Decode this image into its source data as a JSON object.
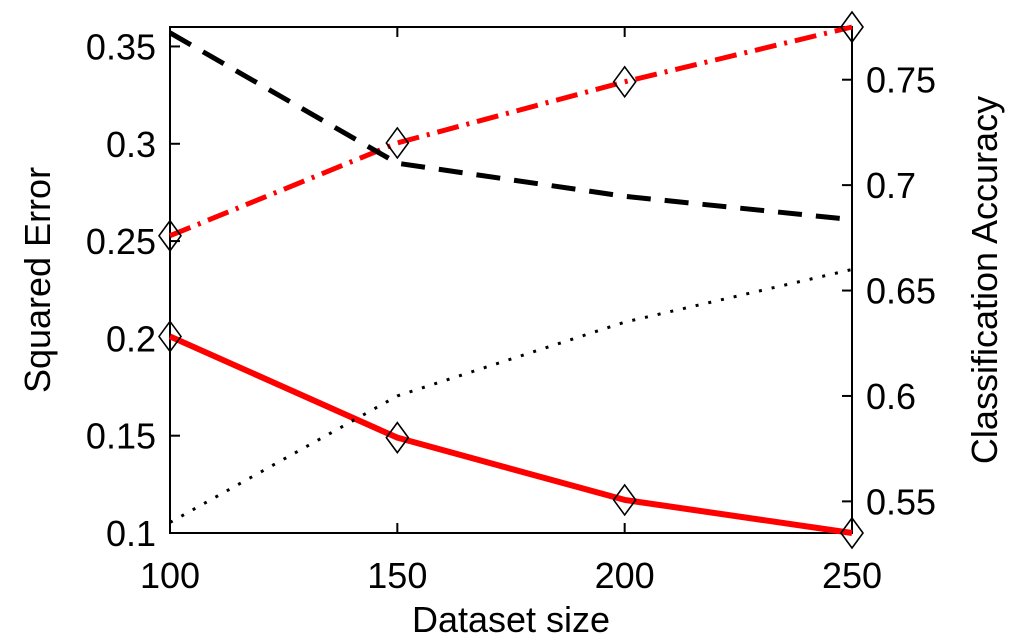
{
  "chart_data": {
    "type": "line",
    "xlabel": "Dataset size",
    "ylabel_left": "Squared Error",
    "ylabel_right": "Classification Accuracy",
    "x": [
      100,
      150,
      200,
      250
    ],
    "xlim": [
      100,
      250
    ],
    "ylim_left": [
      0.1,
      0.36
    ],
    "ylim_right": [
      0.535,
      0.775
    ],
    "xticks": [
      "100",
      "150",
      "200",
      "250"
    ],
    "yticks_left": [
      "0.1",
      "0.15",
      "0.2",
      "0.25",
      "0.3",
      "0.35"
    ],
    "yticks_right": [
      "0.55",
      "0.6",
      "0.65",
      "0.7",
      "0.75"
    ],
    "grid": false,
    "series": [
      {
        "axis": "left",
        "style": "solid",
        "color": "#ff0000",
        "markers": true,
        "values": [
          0.201,
          0.149,
          0.117,
          0.1
        ]
      },
      {
        "axis": "right",
        "style": "dashdot",
        "color": "#ff0000",
        "markers": true,
        "values": [
          0.676,
          0.72,
          0.749,
          0.775
        ]
      },
      {
        "axis": "left",
        "style": "dashed",
        "color": "#000000",
        "markers": false,
        "values": [
          0.357,
          0.29,
          0.273,
          0.261
        ]
      },
      {
        "axis": "right",
        "style": "dotted",
        "color": "#000000",
        "markers": false,
        "values": [
          0.54,
          0.6,
          0.635,
          0.66
        ]
      }
    ]
  }
}
